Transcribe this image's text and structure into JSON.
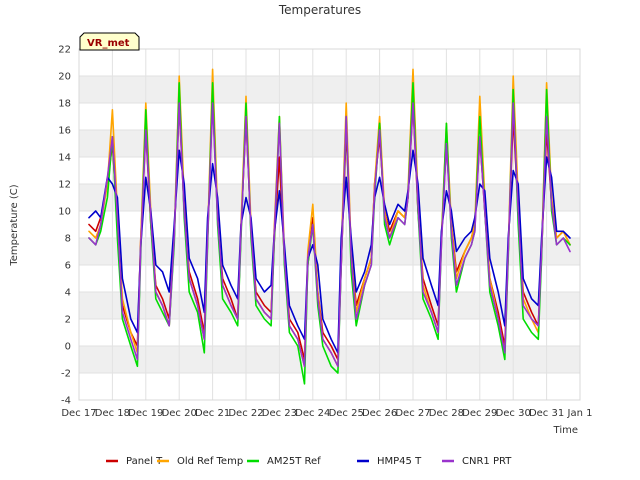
{
  "chart_data": {
    "type": "line",
    "title": "Temperatures",
    "xlabel": "Time",
    "ylabel": "Temperature (C)",
    "ylim": [
      -4,
      22
    ],
    "yticks": [
      -4,
      -2,
      0,
      2,
      4,
      6,
      8,
      10,
      12,
      14,
      16,
      18,
      20,
      22
    ],
    "xlim": [
      0,
      15
    ],
    "xtick_labels": [
      "Dec 17",
      "Dec 18",
      "Dec 19",
      "Dec 20",
      "Dec 21",
      "Dec 22",
      "Dec 23",
      "Dec 24",
      "Dec 25",
      "Dec 26",
      "Dec 27",
      "Dec 28",
      "Dec 29",
      "Dec 30",
      "Dec 31",
      "Jan 1"
    ],
    "grid": true,
    "legend_position": "bottom",
    "annotation": {
      "text": "VR_met",
      "position": "top-left",
      "text_color": "#990000",
      "background": "#ffffcc"
    },
    "colors": {
      "panel_t": "#cc0000",
      "old_ref_temp": "#ffa500",
      "am25t_ref": "#00dd00",
      "hmp45_t": "#0000cc",
      "cnr1_prt": "#9933cc",
      "band": "#efefef"
    },
    "x": [
      0.3,
      0.5,
      0.65,
      0.85,
      1.0,
      1.15,
      1.3,
      1.55,
      1.75,
      1.85,
      2.0,
      2.15,
      2.3,
      2.5,
      2.7,
      2.85,
      3.0,
      3.15,
      3.3,
      3.55,
      3.75,
      3.85,
      4.0,
      4.15,
      4.3,
      4.55,
      4.75,
      4.85,
      5.0,
      5.15,
      5.3,
      5.55,
      5.75,
      5.85,
      6.0,
      6.15,
      6.3,
      6.55,
      6.75,
      6.85,
      7.0,
      7.15,
      7.3,
      7.55,
      7.75,
      7.85,
      8.0,
      8.15,
      8.3,
      8.55,
      8.75,
      8.85,
      9.0,
      9.15,
      9.3,
      9.55,
      9.75,
      9.85,
      10.0,
      10.15,
      10.3,
      10.55,
      10.75,
      10.85,
      11.0,
      11.15,
      11.3,
      11.55,
      11.75,
      11.85,
      12.0,
      12.15,
      12.3,
      12.55,
      12.75,
      12.85,
      13.0,
      13.15,
      13.3,
      13.55,
      13.75,
      13.85,
      14.0,
      14.15,
      14.3,
      14.5,
      14.7
    ],
    "series": [
      {
        "name": "Panel T",
        "color": "#cc0000",
        "values": [
          9.0,
          8.5,
          9.5,
          12.0,
          15.0,
          9.0,
          3.0,
          1.0,
          0.0,
          8.0,
          16.0,
          9.0,
          4.5,
          3.5,
          2.0,
          8.0,
          18.0,
          10.0,
          5.5,
          3.5,
          1.0,
          8.0,
          18.5,
          9.5,
          5.0,
          3.5,
          2.0,
          8.5,
          17.0,
          8.5,
          4.0,
          3.0,
          2.5,
          8.0,
          14.0,
          6.5,
          2.0,
          1.0,
          -1.0,
          6.0,
          9.5,
          4.0,
          1.0,
          0.0,
          -1.0,
          6.0,
          16.0,
          7.0,
          3.0,
          5.0,
          6.5,
          12.0,
          15.5,
          10.0,
          8.5,
          10.0,
          9.5,
          11.0,
          18.0,
          10.0,
          5.0,
          3.0,
          1.5,
          8.0,
          15.0,
          9.0,
          5.5,
          7.0,
          8.0,
          9.0,
          15.5,
          10.0,
          5.0,
          2.5,
          0.0,
          7.0,
          17.0,
          10.0,
          4.0,
          2.5,
          1.5,
          7.0,
          16.0,
          10.5,
          8.0,
          8.5,
          7.5
        ]
      },
      {
        "name": "Old Ref Temp",
        "color": "#ffa500",
        "values": [
          8.5,
          8.0,
          9.0,
          12.0,
          17.5,
          10.0,
          3.5,
          1.0,
          -0.5,
          8.0,
          18.0,
          10.0,
          4.0,
          3.0,
          1.5,
          8.0,
          20.0,
          11.0,
          5.0,
          3.0,
          0.5,
          8.0,
          20.5,
          10.0,
          4.5,
          3.0,
          2.0,
          9.0,
          18.5,
          9.0,
          3.5,
          2.5,
          2.0,
          9.0,
          17.0,
          7.0,
          1.5,
          0.5,
          -1.5,
          7.0,
          10.5,
          4.0,
          0.5,
          -0.5,
          -1.5,
          7.0,
          18.0,
          7.0,
          2.5,
          5.0,
          6.5,
          12.0,
          17.0,
          10.0,
          8.0,
          10.0,
          9.5,
          11.5,
          20.5,
          11.0,
          4.5,
          2.5,
          1.0,
          8.0,
          16.5,
          9.0,
          5.0,
          7.0,
          8.0,
          9.0,
          18.5,
          11.0,
          5.0,
          2.0,
          -0.5,
          7.0,
          20.0,
          11.0,
          3.5,
          2.0,
          1.0,
          7.0,
          19.5,
          11.0,
          8.0,
          8.5,
          7.5
        ]
      },
      {
        "name": "AM25T Ref",
        "color": "#00dd00",
        "values": [
          8.0,
          7.5,
          8.5,
          11.0,
          15.5,
          8.0,
          2.0,
          0.0,
          -1.5,
          7.0,
          17.5,
          9.0,
          3.5,
          2.5,
          1.5,
          7.5,
          19.5,
          9.5,
          4.0,
          2.5,
          -0.5,
          7.5,
          19.5,
          9.0,
          3.5,
          2.5,
          1.5,
          8.0,
          18.0,
          8.0,
          3.0,
          2.0,
          1.5,
          8.0,
          17.0,
          6.0,
          1.0,
          0.0,
          -2.8,
          6.0,
          9.0,
          3.0,
          0.0,
          -1.5,
          -2.0,
          6.0,
          17.0,
          5.5,
          1.5,
          4.5,
          6.0,
          11.0,
          16.5,
          9.0,
          7.5,
          9.5,
          9.0,
          11.0,
          19.5,
          10.0,
          3.5,
          2.0,
          0.5,
          7.5,
          16.5,
          8.0,
          4.0,
          6.5,
          7.5,
          8.5,
          17.0,
          10.0,
          4.0,
          1.5,
          -1.0,
          6.5,
          19.0,
          9.0,
          2.0,
          1.0,
          0.5,
          6.5,
          19.0,
          10.0,
          7.5,
          8.0,
          7.5
        ]
      },
      {
        "name": "HMP45 T",
        "color": "#0000cc",
        "values": [
          9.5,
          10.0,
          9.5,
          12.5,
          12.0,
          11.0,
          5.0,
          2.0,
          1.0,
          7.5,
          12.5,
          10.0,
          6.0,
          5.5,
          4.0,
          9.0,
          14.5,
          12.0,
          6.5,
          5.0,
          2.5,
          9.5,
          13.5,
          11.0,
          6.0,
          4.5,
          3.5,
          9.0,
          11.0,
          9.5,
          5.0,
          4.0,
          4.5,
          8.5,
          11.5,
          7.5,
          3.0,
          1.5,
          0.5,
          6.5,
          7.5,
          6.0,
          2.0,
          0.5,
          -0.5,
          8.0,
          12.5,
          8.0,
          4.0,
          5.5,
          7.5,
          11.0,
          12.5,
          10.5,
          9.0,
          10.5,
          10.0,
          11.5,
          14.5,
          12.0,
          6.5,
          4.5,
          3.0,
          8.5,
          11.5,
          10.0,
          7.0,
          8.0,
          8.5,
          9.5,
          12.0,
          11.5,
          6.5,
          4.0,
          1.5,
          8.0,
          13.0,
          12.0,
          5.0,
          3.5,
          3.0,
          8.0,
          14.0,
          12.5,
          8.5,
          8.5,
          8.0
        ]
      },
      {
        "name": "CNR1 PRT",
        "color": "#9933cc",
        "values": [
          8.0,
          7.5,
          9.0,
          12.5,
          15.5,
          9.5,
          2.5,
          0.5,
          -1.0,
          7.5,
          16.0,
          9.5,
          4.0,
          3.0,
          1.5,
          8.0,
          18.0,
          10.0,
          5.0,
          3.0,
          0.5,
          8.0,
          18.0,
          9.5,
          4.5,
          3.0,
          2.0,
          8.5,
          17.0,
          8.5,
          3.5,
          2.5,
          2.0,
          8.5,
          16.5,
          6.5,
          1.5,
          0.5,
          -1.5,
          6.5,
          9.0,
          3.5,
          0.5,
          -0.5,
          -1.5,
          6.0,
          17.0,
          6.5,
          2.0,
          4.5,
          6.0,
          11.5,
          16.0,
          9.5,
          8.0,
          9.5,
          9.0,
          11.0,
          18.0,
          10.5,
          4.0,
          2.5,
          1.0,
          7.5,
          15.0,
          8.5,
          4.5,
          6.5,
          7.5,
          8.5,
          15.5,
          10.0,
          4.5,
          2.0,
          -0.5,
          7.0,
          18.0,
          10.0,
          3.0,
          2.0,
          1.5,
          7.0,
          17.0,
          10.5,
          7.5,
          8.0,
          7.0
        ]
      }
    ]
  }
}
